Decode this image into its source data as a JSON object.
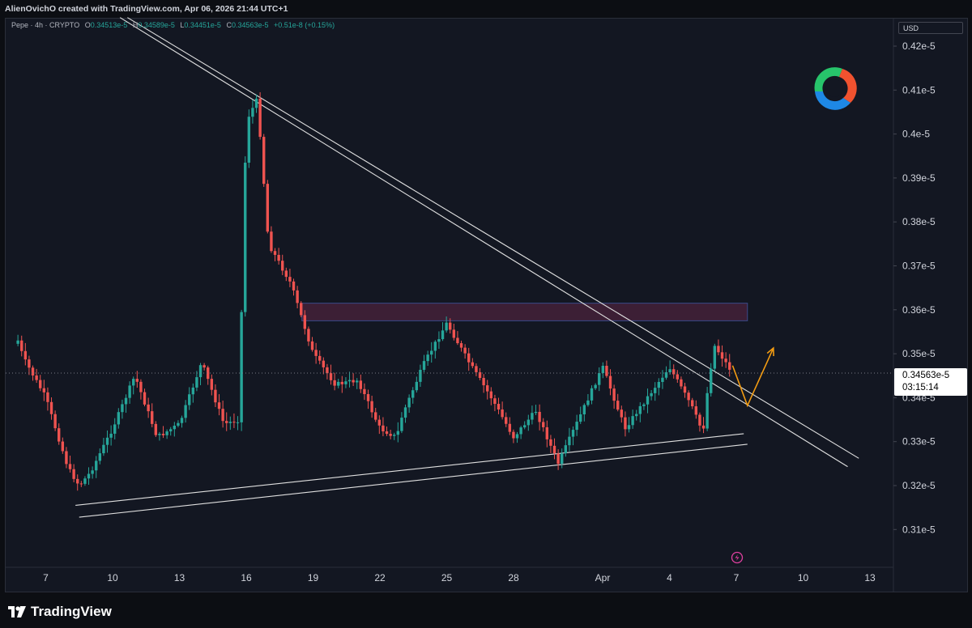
{
  "header": {
    "credit": "AlienOvichO created with TradingView.com, Apr 06, 2026 21:44 UTC+1"
  },
  "legend": {
    "symbol": "Pepe · 4h · CRYPTO",
    "open_label": "O",
    "open": "0.34513e-5",
    "high_label": "H",
    "high": "0.34589e-5",
    "low_label": "L",
    "low": "0.34451e-5",
    "close_label": "C",
    "close": "0.34563e-5",
    "change": "+0.51e-8 (+0.15%)"
  },
  "price_axis": {
    "currency": "USD",
    "labels": [
      "0.42e-5",
      "0.41e-5",
      "0.4e-5",
      "0.39e-5",
      "0.38e-5",
      "0.37e-5",
      "0.36e-5",
      "0.35e-5",
      "0.34e-5",
      "0.33e-5",
      "0.32e-5",
      "0.31e-5"
    ]
  },
  "last_price": {
    "value": "0.34563e-5",
    "countdown": "03:15:14"
  },
  "time_axis": {
    "labels": [
      "7",
      "10",
      "13",
      "16",
      "19",
      "22",
      "25",
      "28",
      "Apr",
      "4",
      "7",
      "10",
      "13"
    ]
  },
  "footer": {
    "brand": "TradingView"
  },
  "colors": {
    "up": "#26a69a",
    "down": "#ef5350",
    "zone": "#3c1f35",
    "arrow": "#f39c12",
    "line": "#e0e0e0"
  },
  "chart_data": {
    "type": "candlestick",
    "symbol": "Pepe",
    "interval": "4h",
    "y_unit": "USD (×1e-5)",
    "ylim": [
      0.3045,
      0.4265
    ],
    "x_range": [
      "Mar 5",
      "Apr 13"
    ],
    "close_path": [
      {
        "t": "Mar 5 18:00",
        "close": 0.353
      },
      {
        "t": "Mar 6",
        "close": 0.349
      },
      {
        "t": "Mar 7",
        "close": 0.34
      },
      {
        "t": "Mar 8",
        "close": 0.324
      },
      {
        "t": "Mar 8 12:00",
        "close": 0.32
      },
      {
        "t": "Mar 9",
        "close": 0.323
      },
      {
        "t": "Mar 10",
        "close": 0.333
      },
      {
        "t": "Mar 11",
        "close": 0.345
      },
      {
        "t": "Mar 12",
        "close": 0.331
      },
      {
        "t": "Mar 13",
        "close": 0.334
      },
      {
        "t": "Mar 14",
        "close": 0.348
      },
      {
        "t": "Mar 15",
        "close": 0.334
      },
      {
        "t": "Mar 15 16:00",
        "close": 0.335
      },
      {
        "t": "Mar 16",
        "close": 0.403
      },
      {
        "t": "Mar 16 12:00",
        "close": 0.408
      },
      {
        "t": "Mar 17",
        "close": 0.375
      },
      {
        "t": "Mar 18",
        "close": 0.366
      },
      {
        "t": "Mar 19",
        "close": 0.35
      },
      {
        "t": "Mar 20",
        "close": 0.343
      },
      {
        "t": "Mar 21",
        "close": 0.344
      },
      {
        "t": "Mar 22",
        "close": 0.333
      },
      {
        "t": "Mar 22 18:00",
        "close": 0.331
      },
      {
        "t": "Mar 23",
        "close": 0.336
      },
      {
        "t": "Mar 24",
        "close": 0.348
      },
      {
        "t": "Mar 25",
        "close": 0.357
      },
      {
        "t": "Mar 26",
        "close": 0.348
      },
      {
        "t": "Mar 27",
        "close": 0.34
      },
      {
        "t": "Mar 28",
        "close": 0.331
      },
      {
        "t": "Mar 29",
        "close": 0.337
      },
      {
        "t": "Mar 30",
        "close": 0.325
      },
      {
        "t": "Mar 31",
        "close": 0.336
      },
      {
        "t": "Apr 1",
        "close": 0.347
      },
      {
        "t": "Apr 2",
        "close": 0.333
      },
      {
        "t": "Apr 3",
        "close": 0.34
      },
      {
        "t": "Apr 4",
        "close": 0.347
      },
      {
        "t": "Apr 5",
        "close": 0.338
      },
      {
        "t": "Apr 5 12:00",
        "close": 0.332
      },
      {
        "t": "Apr 5 16:00",
        "close": 0.34
      },
      {
        "t": "Apr 6",
        "close": 0.352
      },
      {
        "t": "Apr 6 20:00",
        "close": 0.3456
      }
    ],
    "annotations": {
      "supply_zone": {
        "from": "Mar 18 12:00",
        "to": "Apr 7 12:00",
        "low": 0.3575,
        "high": 0.3615
      },
      "descending_trendline_1": [
        {
          "t": "Mar 10 08:00",
          "p": 0.4265
        },
        {
          "t": "Apr 12",
          "p": 0.3243
        }
      ],
      "descending_trendline_2": [
        {
          "t": "Mar 10 16:00",
          "p": 0.4265
        },
        {
          "t": "Apr 12 12:00",
          "p": 0.3262
        }
      ],
      "ascending_trendline_1": [
        {
          "t": "Mar 8 08:00",
          "p": 0.3155
        },
        {
          "t": "Apr 7 08:00",
          "p": 0.3318
        }
      ],
      "ascending_trendline_2": [
        {
          "t": "Mar 8 12:00",
          "p": 0.3128
        },
        {
          "t": "Apr 7 12:00",
          "p": 0.3294
        }
      ],
      "projection": [
        {
          "t": "Apr 6 20:00",
          "p": 0.3473
        },
        {
          "t": "Apr 7 12:00",
          "p": 0.3382
        },
        {
          "t": "Apr 8 16:00",
          "p": 0.3513
        }
      ]
    }
  }
}
